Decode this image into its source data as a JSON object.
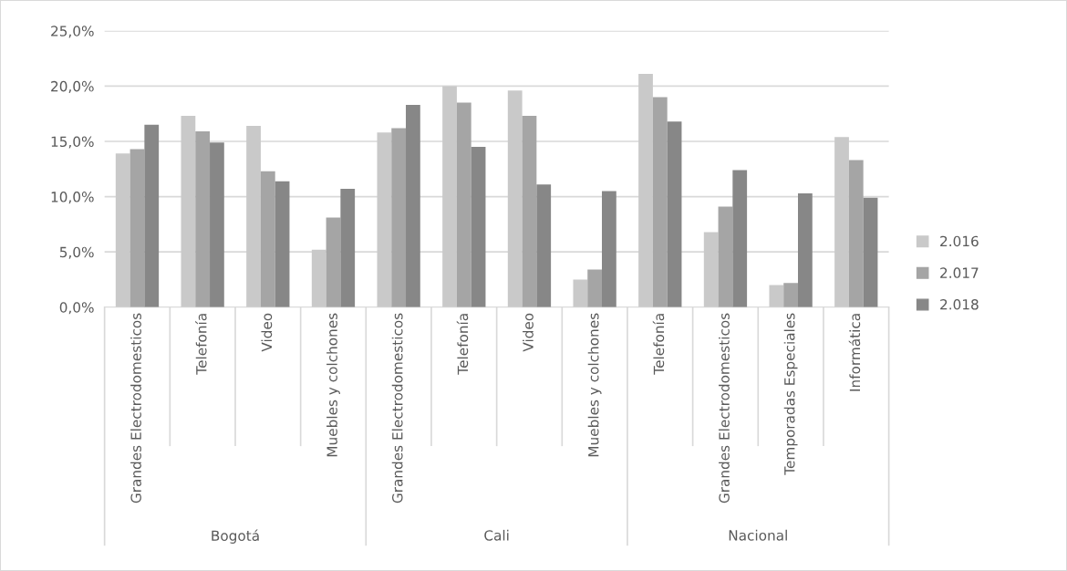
{
  "chart_data": {
    "type": "bar",
    "categories": [
      "Grandes Electrodomesticos",
      "Telefonía",
      "Video",
      "Muebles y colchones",
      "Grandes Electrodomesticos",
      "Telefonía",
      "Video",
      "Muebles y colchones",
      "Telefonía",
      "Grandes Electrodomesticos",
      "Temporadas Especiales",
      "Informática"
    ],
    "series": [
      {
        "name": "2.016",
        "color": "#c9c9c9",
        "values": [
          13.9,
          17.3,
          16.4,
          5.2,
          15.8,
          20.0,
          19.6,
          2.5,
          21.1,
          6.8,
          2.0,
          15.4
        ]
      },
      {
        "name": "2.017",
        "color": "#a5a5a5",
        "values": [
          14.3,
          15.9,
          12.3,
          8.1,
          16.2,
          18.5,
          17.3,
          3.4,
          19.0,
          9.1,
          2.2,
          13.3
        ]
      },
      {
        "name": "2.018",
        "color": "#878787",
        "values": [
          16.5,
          14.9,
          11.4,
          10.7,
          18.3,
          14.5,
          11.1,
          10.5,
          16.8,
          12.4,
          10.3,
          9.9
        ]
      }
    ],
    "annotations": [
      "Bogotá",
      "Cali",
      "Nacional"
    ],
    "ylim": [
      0,
      25
    ],
    "yticks": [
      {
        "value": 0,
        "label": "0,0%"
      },
      {
        "value": 5,
        "label": "5,0%"
      },
      {
        "value": 10,
        "label": "10,0%"
      },
      {
        "value": 15,
        "label": "15,0%"
      },
      {
        "value": 20,
        "label": "20,0%"
      },
      {
        "value": 25,
        "label": "25,0%"
      }
    ],
    "grid": "y",
    "legend": "right"
  }
}
